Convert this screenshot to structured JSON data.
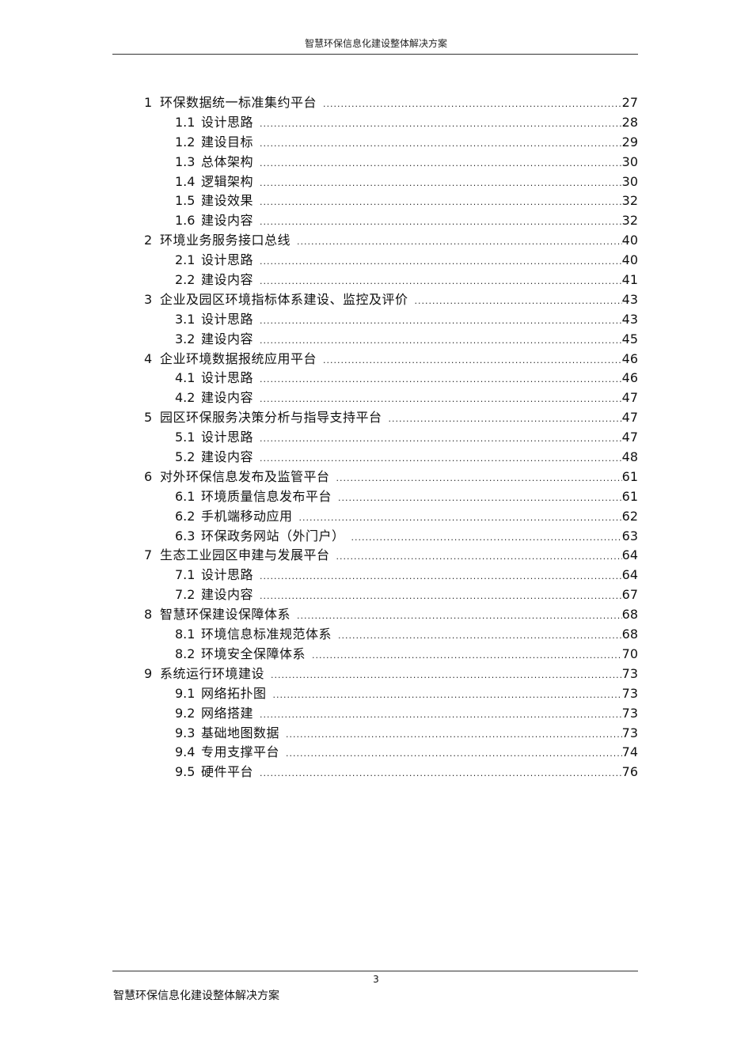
{
  "header": {
    "title": "智慧环保信息化建设整体解决方案"
  },
  "toc": [
    {
      "level": 1,
      "num": "1",
      "title": "环保数据统一标准集约平台",
      "page": "27"
    },
    {
      "level": 2,
      "num": "1.1",
      "title": "设计思路",
      "page": "28"
    },
    {
      "level": 2,
      "num": "1.2",
      "title": "建设目标",
      "page": "29"
    },
    {
      "level": 2,
      "num": "1.3",
      "title": "总体架构",
      "page": "30"
    },
    {
      "level": 2,
      "num": "1.4",
      "title": "逻辑架构",
      "page": "30"
    },
    {
      "level": 2,
      "num": "1.5",
      "title": "建设效果",
      "page": "32"
    },
    {
      "level": 2,
      "num": "1.6",
      "title": "建设内容",
      "page": "32"
    },
    {
      "level": 1,
      "num": "2",
      "title": "环境业务服务接口总线",
      "page": "40"
    },
    {
      "level": 2,
      "num": "2.1",
      "title": "设计思路",
      "page": "40"
    },
    {
      "level": 2,
      "num": "2.2",
      "title": "建设内容",
      "page": "41"
    },
    {
      "level": 1,
      "num": "3",
      "title": "企业及园区环境指标体系建设、监控及评价",
      "page": "43"
    },
    {
      "level": 2,
      "num": "3.1",
      "title": "设计思路",
      "page": "43"
    },
    {
      "level": 2,
      "num": "3.2",
      "title": "建设内容",
      "page": "45"
    },
    {
      "level": 1,
      "num": "4",
      "title": "企业环境数据报统应用平台",
      "page": "46"
    },
    {
      "level": 2,
      "num": "4.1",
      "title": "设计思路",
      "page": "46"
    },
    {
      "level": 2,
      "num": "4.2",
      "title": "建设内容",
      "page": "47"
    },
    {
      "level": 1,
      "num": "5",
      "title": "园区环保服务决策分析与指导支持平台",
      "page": "47"
    },
    {
      "level": 2,
      "num": "5.1",
      "title": "设计思路",
      "page": "47"
    },
    {
      "level": 2,
      "num": "5.2",
      "title": "建设内容",
      "page": "48"
    },
    {
      "level": 1,
      "num": "6",
      "title": "对外环保信息发布及监管平台",
      "page": "61"
    },
    {
      "level": 2,
      "num": "6.1",
      "title": "环境质量信息发布平台",
      "page": "61"
    },
    {
      "level": 2,
      "num": "6.2",
      "title": "手机端移动应用",
      "page": "62"
    },
    {
      "level": 2,
      "num": "6.3",
      "title": "环保政务网站（外门户）",
      "page": "63"
    },
    {
      "level": 1,
      "num": "7",
      "title": "生态工业园区申建与发展平台",
      "page": "64"
    },
    {
      "level": 2,
      "num": "7.1",
      "title": "设计思路",
      "page": "64"
    },
    {
      "level": 2,
      "num": "7.2",
      "title": "建设内容",
      "page": "67"
    },
    {
      "level": 1,
      "num": "8",
      "title": "智慧环保建设保障体系",
      "page": "68"
    },
    {
      "level": 2,
      "num": "8.1",
      "title": "环境信息标准规范体系",
      "page": "68"
    },
    {
      "level": 2,
      "num": "8.2",
      "title": "环境安全保障体系",
      "page": "70"
    },
    {
      "level": 1,
      "num": "9",
      "title": "系统运行环境建设",
      "page": "73"
    },
    {
      "level": 2,
      "num": "9.1",
      "title": "网络拓扑图",
      "page": "73"
    },
    {
      "level": 2,
      "num": "9.2",
      "title": "网络搭建",
      "page": "73"
    },
    {
      "level": 2,
      "num": "9.3",
      "title": "基础地图数据",
      "page": "73"
    },
    {
      "level": 2,
      "num": "9.4",
      "title": "专用支撑平台",
      "page": "74"
    },
    {
      "level": 2,
      "num": "9.5",
      "title": "硬件平台",
      "page": "76"
    }
  ],
  "footer": {
    "page_number": "3",
    "title": "智慧环保信息化建设整体解决方案"
  }
}
